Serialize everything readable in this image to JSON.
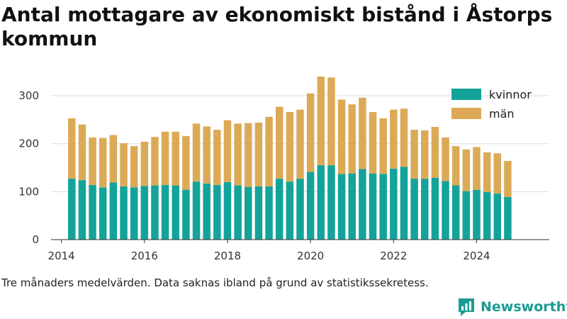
{
  "header": {
    "title": "Antal mottagare av ekonomiskt bistånd i Åstorps kommun"
  },
  "footer": {
    "note": "Tre månaders medelvärden. Data saknas ibland på grund av statistikssekretess.",
    "brand": "Newsworthy"
  },
  "colors": {
    "kvinnor": "#14a39a",
    "man": "#dcaa57",
    "grid": "#dedede",
    "brand": "#1c9c91"
  },
  "chart_data": {
    "type": "bar",
    "stacked": true,
    "title": "Antal mottagare av ekonomiskt bistånd i Åstorps kommun",
    "xlabel": "",
    "ylabel": "",
    "ylim": [
      0,
      340
    ],
    "y_ticks": [
      0,
      100,
      200,
      300
    ],
    "x_ticks": [
      2014,
      2016,
      2018,
      2020,
      2022,
      2024
    ],
    "x_tick_labels": [
      "2014",
      "2016",
      "2018",
      "2020",
      "2022",
      "2024"
    ],
    "grid": true,
    "legend_position": "top-right",
    "x": [
      2014.25,
      2014.5,
      2014.75,
      2015.0,
      2015.25,
      2015.5,
      2015.75,
      2016.0,
      2016.25,
      2016.5,
      2016.75,
      2017.0,
      2017.25,
      2017.5,
      2017.75,
      2018.0,
      2018.25,
      2018.5,
      2018.75,
      2019.0,
      2019.25,
      2019.5,
      2019.75,
      2020.0,
      2020.25,
      2020.5,
      2020.75,
      2021.0,
      2021.25,
      2021.5,
      2021.75,
      2022.0,
      2022.25,
      2022.5,
      2022.75,
      2023.0,
      2023.25,
      2023.5,
      2023.75,
      2024.0,
      2024.25,
      2024.5,
      2024.75
    ],
    "series": [
      {
        "name": "kvinnor",
        "values": [
          127,
          124,
          114,
          109,
          119,
          111,
          109,
          112,
          113,
          114,
          113,
          104,
          121,
          117,
          114,
          120,
          113,
          110,
          111,
          111,
          127,
          121,
          127,
          141,
          155,
          155,
          137,
          138,
          147,
          138,
          137,
          148,
          152,
          127,
          127,
          129,
          122,
          113,
          101,
          104,
          99,
          96,
          89
        ]
      },
      {
        "name": "män",
        "values": [
          126,
          116,
          99,
          103,
          99,
          90,
          86,
          92,
          101,
          111,
          112,
          112,
          121,
          119,
          115,
          129,
          129,
          133,
          133,
          145,
          150,
          145,
          144,
          164,
          185,
          183,
          155,
          144,
          149,
          128,
          116,
          123,
          121,
          102,
          101,
          106,
          91,
          82,
          87,
          89,
          83,
          84,
          75
        ]
      }
    ]
  }
}
